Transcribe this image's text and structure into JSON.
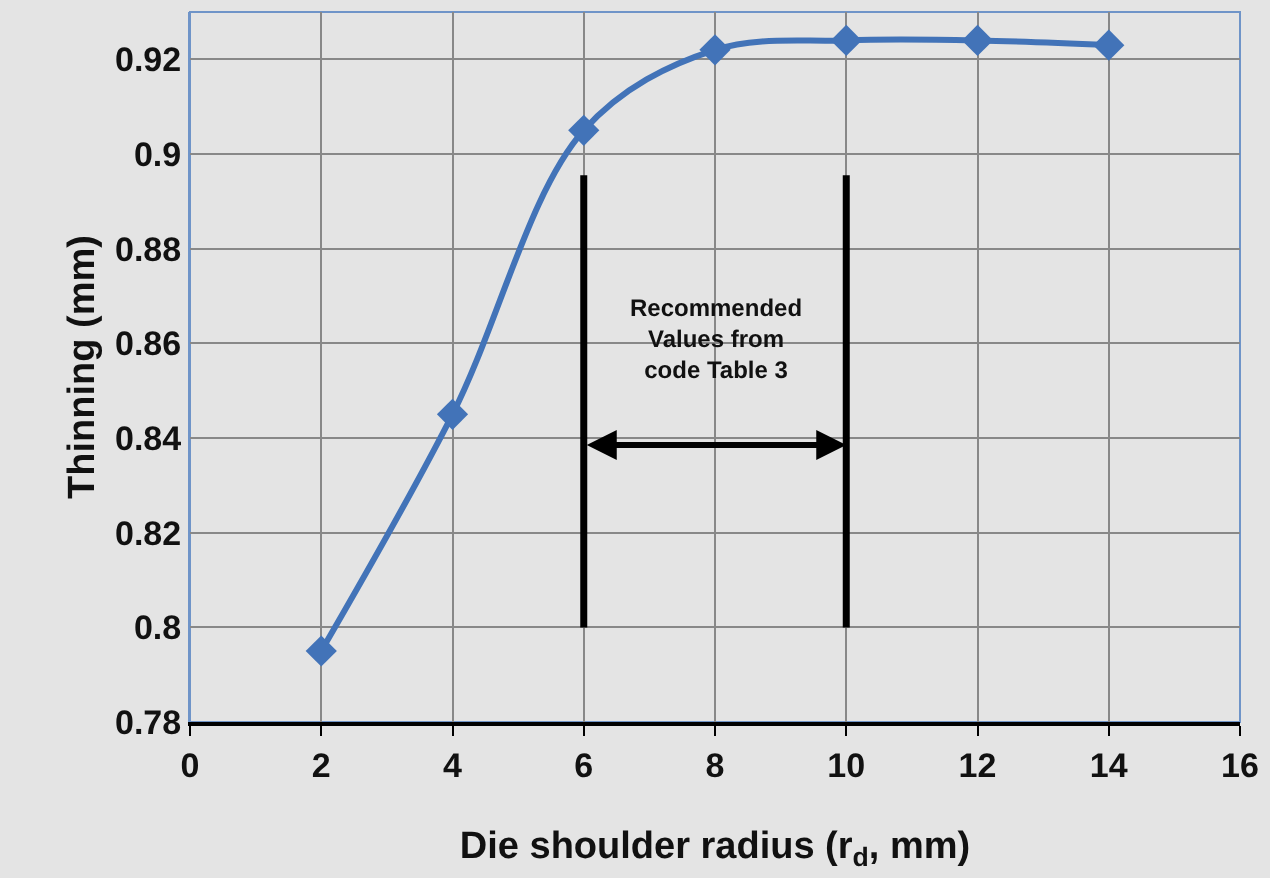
{
  "chart_data": {
    "type": "line",
    "xlabel": "Die shoulder radius (r$_{d}$, mm)",
    "ylabel": "Thinning (mm)",
    "x": [
      2,
      4,
      6,
      8,
      10,
      12,
      14
    ],
    "series": [
      {
        "color": "#4273b8",
        "values": [
          0.795,
          0.845,
          0.905,
          0.922,
          0.924,
          0.924,
          0.923
        ]
      }
    ],
    "xlim": [
      0,
      16
    ],
    "xticks": [
      0,
      2,
      4,
      6,
      8,
      10,
      12,
      14,
      16
    ],
    "ylim": [
      0.78,
      0.93
    ],
    "yticks": [
      0.78,
      0.8,
      0.82,
      0.84,
      0.86,
      0.88,
      0.9,
      0.92
    ],
    "ref_lines": [
      {
        "axis": "x",
        "value": 6,
        "color": "#000000"
      },
      {
        "axis": "x",
        "value": 10,
        "color": "#000000"
      }
    ],
    "annotations": [
      "Recommended\nValues from\ncode Table 3"
    ],
    "grid": true,
    "marker": "diamond",
    "line_style": "solid"
  }
}
